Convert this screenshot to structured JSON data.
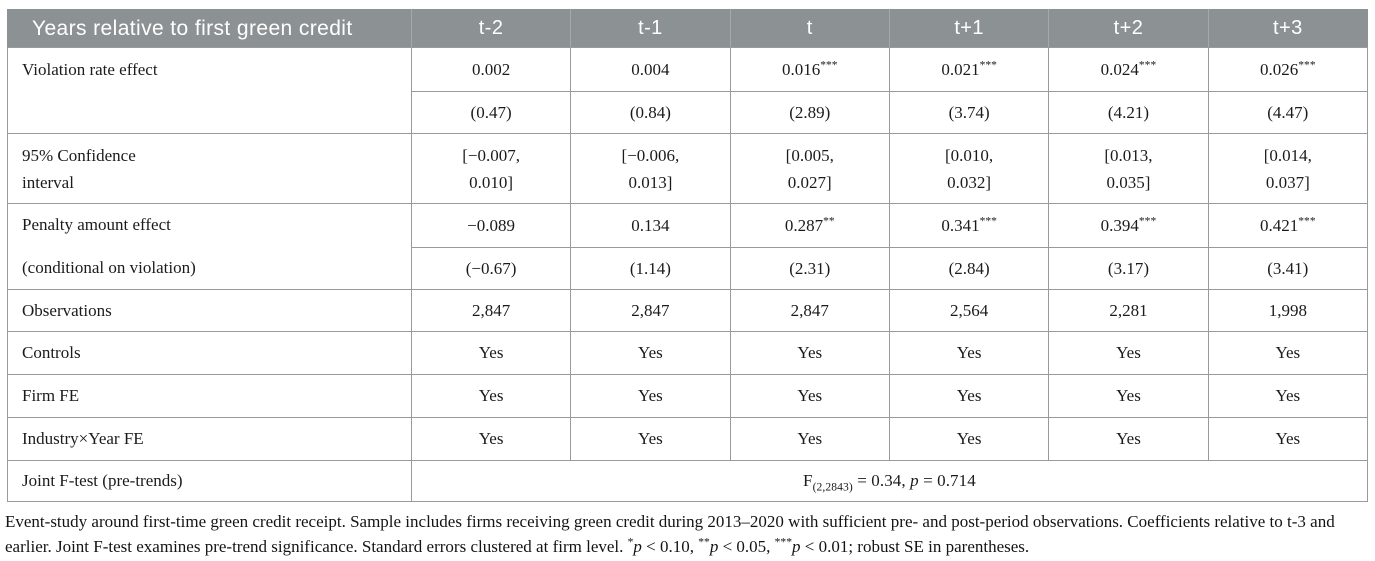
{
  "colors": {
    "header_bg": "#8c9293",
    "header_text": "#ffffff",
    "border": "#979b9c",
    "body_text": "#1b1b1b"
  },
  "header": {
    "label": "Years relative to first green credit",
    "columns": [
      "t-2",
      "t-1",
      "t",
      "t+1",
      "t+2",
      "t+3"
    ]
  },
  "violation_rate": {
    "label": "Violation rate effect",
    "coefficients": [
      {
        "value": "0.002",
        "stars": ""
      },
      {
        "value": "0.004",
        "stars": ""
      },
      {
        "value": "0.016",
        "stars": "***"
      },
      {
        "value": "0.021",
        "stars": "***"
      },
      {
        "value": "0.024",
        "stars": "***"
      },
      {
        "value": "0.026",
        "stars": "***"
      }
    ],
    "t_stats": [
      "(0.47)",
      "(0.84)",
      "(2.89)",
      "(3.74)",
      "(4.21)",
      "(4.47)"
    ]
  },
  "confidence_interval": {
    "label_line1": "95% Confidence",
    "label_line2": "interval",
    "line1": [
      "[−0.007,",
      "[−0.006,",
      "[0.005,",
      "[0.010,",
      "[0.013,",
      "[0.014,"
    ],
    "line2": [
      "0.010]",
      "0.013]",
      "0.027]",
      "0.032]",
      "0.035]",
      "0.037]"
    ]
  },
  "penalty_amount": {
    "label_line1": "Penalty amount effect",
    "label_line2": "(conditional on violation)",
    "coefficients": [
      {
        "value": "−0.089",
        "stars": ""
      },
      {
        "value": "0.134",
        "stars": ""
      },
      {
        "value": "0.287",
        "stars": "**"
      },
      {
        "value": "0.341",
        "stars": "***"
      },
      {
        "value": "0.394",
        "stars": "***"
      },
      {
        "value": "0.421",
        "stars": "***"
      }
    ],
    "t_stats": [
      "(−0.67)",
      "(1.14)",
      "(2.31)",
      "(2.84)",
      "(3.17)",
      "(3.41)"
    ]
  },
  "observations": {
    "label": "Observations",
    "values": [
      "2,847",
      "2,847",
      "2,847",
      "2,564",
      "2,281",
      "1,998"
    ]
  },
  "controls": {
    "label": "Controls",
    "values": [
      "Yes",
      "Yes",
      "Yes",
      "Yes",
      "Yes",
      "Yes"
    ]
  },
  "firm_fe": {
    "label": "Firm FE",
    "values": [
      "Yes",
      "Yes",
      "Yes",
      "Yes",
      "Yes",
      "Yes"
    ]
  },
  "industry_year_fe": {
    "label": "Industry×Year FE",
    "values": [
      "Yes",
      "Yes",
      "Yes",
      "Yes",
      "Yes",
      "Yes"
    ]
  },
  "joint_f_test": {
    "label": "Joint F-test (pre-trends)",
    "statistic": "F",
    "subscript": "(2,2843)",
    "equals": " = 0.34, ",
    "p_symbol": "p",
    "p_value": " = 0.714"
  },
  "footnote": {
    "text": "Event-study around first-time green credit receipt. Sample includes firms receiving green credit during 2013–2020 with sufficient pre- and post-period observations. Coefficients relative to t-3 and earlier. Joint F-test examines pre-trend significance. Standard errors clustered at firm level. ",
    "sig1_stars": "*",
    "sig1_p": "p",
    "sig1_rest": " < 0.10, ",
    "sig2_stars": "**",
    "sig2_p": "p",
    "sig2_rest": " < 0.05, ",
    "sig3_stars": "***",
    "sig3_p": "p",
    "sig3_rest": " < 0.01; robust SE in parentheses."
  }
}
